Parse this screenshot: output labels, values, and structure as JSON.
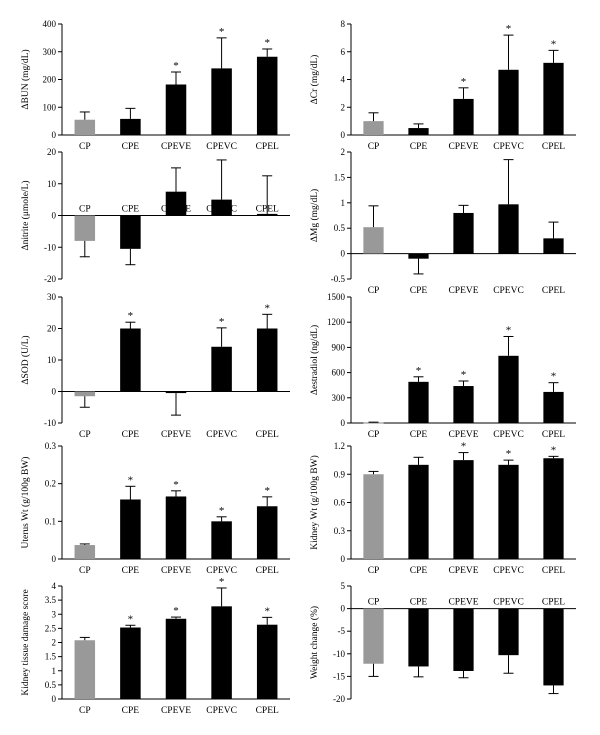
{
  "colors": {
    "control": "#999999",
    "treated": "#000000",
    "axis": "#000000"
  },
  "chart_data": [
    {
      "type": "bar",
      "ylabel": "ΔBUN (mg/dL)",
      "categories": [
        "CP",
        "CPE",
        "CPEVE",
        "CPEVC",
        "CPEL"
      ],
      "values": [
        55,
        58,
        182,
        240,
        282
      ],
      "errors": [
        28,
        38,
        45,
        110,
        28
      ],
      "significant": [
        false,
        false,
        true,
        true,
        true
      ],
      "ylim": [
        0,
        400
      ],
      "yticks": [
        0,
        100,
        200,
        300,
        400
      ],
      "category_position": "bottom"
    },
    {
      "type": "bar",
      "ylabel": "ΔCr (mg/dL)",
      "categories": [
        "CP",
        "CPE",
        "CPEVE",
        "CPEVC",
        "CPEL"
      ],
      "values": [
        1.0,
        0.5,
        2.6,
        4.7,
        5.2
      ],
      "errors": [
        0.6,
        0.3,
        0.8,
        2.5,
        0.9
      ],
      "significant": [
        false,
        false,
        true,
        true,
        true
      ],
      "ylim": [
        0,
        8
      ],
      "yticks": [
        0,
        2,
        4,
        6,
        8
      ],
      "category_position": "bottom"
    },
    {
      "type": "bar",
      "ylabel": "Δnitrite (μmole/L)",
      "categories": [
        "CP",
        "CPE",
        "CPEVE",
        "CPEVC",
        "CPEL"
      ],
      "values": [
        -8,
        -10.5,
        7.5,
        5,
        0.5
      ],
      "errors": [
        5,
        5,
        7.5,
        12.5,
        12
      ],
      "significant": [
        false,
        false,
        false,
        false,
        false
      ],
      "ylim": [
        -20,
        20
      ],
      "yticks": [
        -20,
        -10,
        0,
        10,
        20
      ],
      "category_position": "top"
    },
    {
      "type": "bar",
      "ylabel": "ΔMg (mg/dL)",
      "categories": [
        "CP",
        "CPE",
        "CPEVE",
        "CPEVC",
        "CPEL"
      ],
      "values": [
        0.52,
        -0.1,
        0.8,
        0.97,
        0.3
      ],
      "errors": [
        0.42,
        0.3,
        0.15,
        0.88,
        0.32
      ],
      "significant": [
        false,
        false,
        false,
        false,
        false
      ],
      "ylim": [
        -0.5,
        2
      ],
      "yticks": [
        -0.5,
        0,
        0.5,
        1,
        1.5,
        2
      ],
      "category_position": "bottom"
    },
    {
      "type": "bar",
      "ylabel": "ΔSOD (U/L)",
      "categories": [
        "CP",
        "CPE",
        "CPEVE",
        "CPEVC",
        "CPEL"
      ],
      "values": [
        -1.5,
        20,
        -0.5,
        14.2,
        20
      ],
      "errors": [
        3.5,
        2,
        7,
        6,
        4.5
      ],
      "significant": [
        false,
        true,
        false,
        true,
        true
      ],
      "ylim": [
        -10,
        30
      ],
      "yticks": [
        -10,
        0,
        10,
        20,
        30
      ],
      "category_position": "bottom"
    },
    {
      "type": "bar",
      "ylabel": "Δestradiol (ng/dL)",
      "categories": [
        "CP",
        "CPE",
        "CPEVE",
        "CPEVC",
        "CPEL"
      ],
      "values": [
        5,
        490,
        440,
        800,
        370
      ],
      "errors": [
        5,
        60,
        60,
        230,
        110
      ],
      "significant": [
        false,
        true,
        true,
        true,
        true
      ],
      "ylim": [
        0,
        1500
      ],
      "yticks": [
        0,
        300,
        600,
        900,
        1200,
        1500
      ],
      "category_position": "bottom"
    },
    {
      "type": "bar",
      "ylabel": "Uterus Wt (g/100g BW)",
      "categories": [
        "CP",
        "CPE",
        "CPEVE",
        "CPEVC",
        "CPEL"
      ],
      "values": [
        0.037,
        0.158,
        0.166,
        0.1,
        0.14
      ],
      "errors": [
        0.003,
        0.035,
        0.015,
        0.012,
        0.025
      ],
      "significant": [
        false,
        true,
        true,
        true,
        true
      ],
      "ylim": [
        0,
        0.3
      ],
      "yticks": [
        0,
        0.1,
        0.2,
        0.3
      ],
      "category_position": "bottom"
    },
    {
      "type": "bar",
      "ylabel": "Kidney Wt (g/100g BW)",
      "categories": [
        "CP",
        "CPE",
        "CPEVE",
        "CPEVC",
        "CPEL"
      ],
      "values": [
        0.9,
        1.0,
        1.05,
        1.0,
        1.07
      ],
      "errors": [
        0.03,
        0.08,
        0.08,
        0.05,
        0.02
      ],
      "significant": [
        false,
        false,
        true,
        true,
        true
      ],
      "ylim": [
        0,
        1.2
      ],
      "yticks": [
        0,
        0.3,
        0.6,
        0.9,
        1.2
      ],
      "category_position": "bottom"
    },
    {
      "type": "bar",
      "ylabel": "Kidney tissue damage score",
      "categories": [
        "CP",
        "CPE",
        "CPEVE",
        "CPEVC",
        "CPEL"
      ],
      "values": [
        2.08,
        2.53,
        2.84,
        3.28,
        2.63
      ],
      "errors": [
        0.1,
        0.08,
        0.06,
        0.65,
        0.26
      ],
      "significant": [
        false,
        true,
        true,
        true,
        true
      ],
      "ylim": [
        0,
        4
      ],
      "yticks": [
        0,
        0.5,
        1,
        1.5,
        2,
        2.5,
        3,
        3.5,
        4
      ],
      "category_position": "bottom"
    },
    {
      "type": "bar",
      "ylabel": "Weight change (%)",
      "categories": [
        "CP",
        "CPE",
        "CPEVE",
        "CPEVC",
        "CPEL"
      ],
      "values": [
        -12.2,
        -12.8,
        -13.8,
        -10.3,
        -17
      ],
      "errors": [
        2.8,
        2.3,
        1.5,
        4,
        1.8
      ],
      "significant": [
        false,
        false,
        false,
        false,
        false
      ],
      "ylim": [
        -20,
        5
      ],
      "yticks": [
        -20,
        -15,
        -10,
        -5,
        0,
        5
      ],
      "category_position": "top"
    }
  ]
}
